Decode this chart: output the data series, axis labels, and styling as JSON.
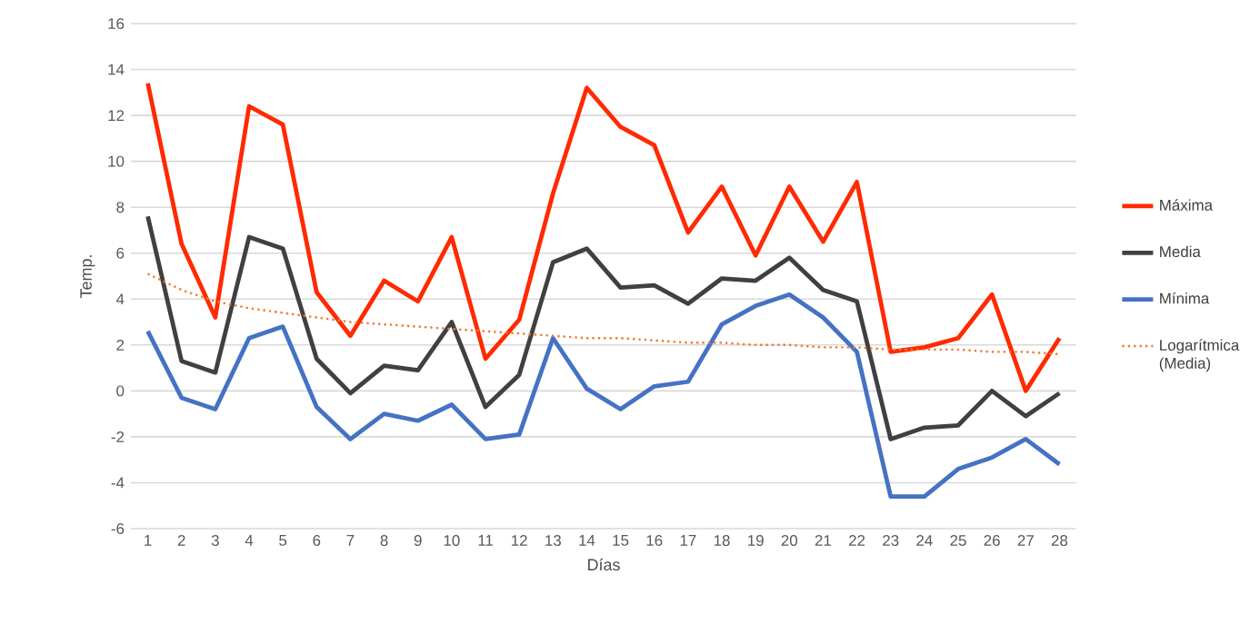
{
  "chart_data": {
    "type": "line",
    "xlabel": "Días",
    "ylabel": "Temp.",
    "categories": [
      "1",
      "2",
      "3",
      "4",
      "5",
      "6",
      "7",
      "8",
      "9",
      "10",
      "11",
      "12",
      "13",
      "14",
      "15",
      "16",
      "17",
      "18",
      "19",
      "20",
      "21",
      "22",
      "23",
      "24",
      "25",
      "26",
      "27",
      "28"
    ],
    "series": [
      {
        "name": "Máxima",
        "color": "#ff2a00",
        "values": [
          13.4,
          6.4,
          3.2,
          12.4,
          11.6,
          4.3,
          2.4,
          4.8,
          3.9,
          6.7,
          1.4,
          3.1,
          8.6,
          13.2,
          11.5,
          10.7,
          6.9,
          8.9,
          5.9,
          8.9,
          6.5,
          9.1,
          1.7,
          1.9,
          2.3,
          4.2,
          0.0,
          2.3
        ]
      },
      {
        "name": "Media",
        "color": "#404040",
        "values": [
          7.6,
          1.3,
          0.8,
          6.7,
          6.2,
          1.4,
          -0.1,
          1.1,
          0.9,
          3.0,
          -0.7,
          0.7,
          5.6,
          6.2,
          4.5,
          4.6,
          3.8,
          4.9,
          4.8,
          5.8,
          4.4,
          3.9,
          -2.1,
          -1.6,
          -1.5,
          0.0,
          -1.1,
          -0.1
        ]
      },
      {
        "name": "Mínima",
        "color": "#4472c4",
        "values": [
          2.6,
          -0.3,
          -0.8,
          2.3,
          2.8,
          -0.7,
          -2.1,
          -1.0,
          -1.3,
          -0.6,
          -2.1,
          -1.9,
          2.3,
          0.1,
          -0.8,
          0.2,
          0.4,
          2.9,
          3.7,
          4.2,
          3.2,
          1.7,
          -4.6,
          -4.6,
          -3.4,
          -2.9,
          -2.1,
          -3.2
        ]
      },
      {
        "name": "Logarítmica (Media)",
        "color": "#ed7d31",
        "line_style": "dotted",
        "values": [
          5.1,
          4.4,
          3.9,
          3.6,
          3.4,
          3.2,
          3.0,
          2.9,
          2.8,
          2.7,
          2.6,
          2.5,
          2.4,
          2.3,
          2.3,
          2.2,
          2.1,
          2.1,
          2.0,
          2.0,
          1.9,
          1.9,
          1.8,
          1.8,
          1.8,
          1.7,
          1.7,
          1.6
        ]
      }
    ],
    "ylim": [
      -6,
      16
    ],
    "yticks": [
      -6,
      -4,
      -2,
      0,
      2,
      4,
      6,
      8,
      10,
      12,
      14,
      16
    ],
    "grid": "y",
    "legend": "right",
    "marker": "none",
    "line_style": "solid"
  }
}
